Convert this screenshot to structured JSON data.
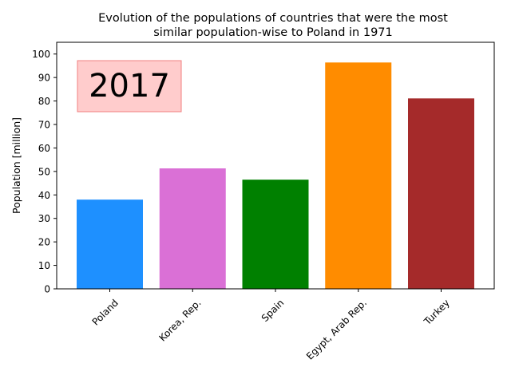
{
  "chart_data": {
    "type": "bar",
    "title_line1": "Evolution of the populations of countries that were the most",
    "title_line2": "similar population-wise to Poland in 1971",
    "ylabel": "Population [million]",
    "ylim": [
      0,
      105
    ],
    "yticks": [
      0,
      10,
      20,
      30,
      40,
      50,
      60,
      70,
      80,
      90,
      100
    ],
    "categories": [
      "Poland",
      "Korea, Rep.",
      "Spain",
      "Egypt, Arab Rep.",
      "Turkey"
    ],
    "values": [
      38.0,
      51.3,
      46.5,
      96.4,
      81.1
    ],
    "colors": [
      "#1e90ff",
      "#da70d6",
      "#008000",
      "#ff8c00",
      "#a52a2a"
    ],
    "annotation": "2017",
    "annotation_box": {
      "face": "#ffcccc",
      "edge": "#f08080"
    },
    "grid": false
  }
}
